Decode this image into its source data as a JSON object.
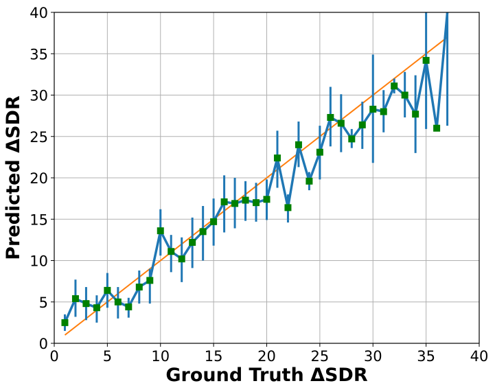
{
  "chart_data": {
    "type": "line",
    "xlabel": "Ground Truth ΔSDR",
    "ylabel": "Predicted ΔSDR",
    "xlim": [
      0,
      40
    ],
    "ylim": [
      0,
      40
    ],
    "xticks": [
      0,
      5,
      10,
      15,
      20,
      25,
      30,
      35,
      40
    ],
    "yticks": [
      0,
      5,
      10,
      15,
      20,
      25,
      30,
      35,
      40
    ],
    "grid": true,
    "series": [
      {
        "kind": "errorbar-line",
        "color": "#1f77b4",
        "marker": "square",
        "marker_color": "#008000",
        "points": [
          {
            "x": 1,
            "y": 2.5,
            "lo": 1.5,
            "hi": 3.5
          },
          {
            "x": 2,
            "y": 5.4,
            "lo": 3.2,
            "hi": 7.7
          },
          {
            "x": 3,
            "y": 4.8,
            "lo": 2.8,
            "hi": 6.8
          },
          {
            "x": 4,
            "y": 4.3,
            "lo": 2.5,
            "hi": 5.8
          },
          {
            "x": 5,
            "y": 6.4,
            "lo": 4.3,
            "hi": 8.5
          },
          {
            "x": 6,
            "y": 5.0,
            "lo": 3.0,
            "hi": 6.8
          },
          {
            "x": 7,
            "y": 4.4,
            "lo": 3.1,
            "hi": 5.5
          },
          {
            "x": 8,
            "y": 6.8,
            "lo": 4.8,
            "hi": 8.8
          },
          {
            "x": 9,
            "y": 7.6,
            "lo": 4.8,
            "hi": 9.0
          },
          {
            "x": 10,
            "y": 13.6,
            "lo": 10.6,
            "hi": 16.2
          },
          {
            "x": 11,
            "y": 11.1,
            "lo": 8.6,
            "hi": 13.1
          },
          {
            "x": 12,
            "y": 10.2,
            "lo": 7.4,
            "hi": 12.8
          },
          {
            "x": 13,
            "y": 12.2,
            "lo": 9.1,
            "hi": 15.2
          },
          {
            "x": 14,
            "y": 13.5,
            "lo": 10.0,
            "hi": 16.6
          },
          {
            "x": 15,
            "y": 14.7,
            "lo": 11.8,
            "hi": 17.5
          },
          {
            "x": 16,
            "y": 17.1,
            "lo": 13.4,
            "hi": 20.3
          },
          {
            "x": 17,
            "y": 16.9,
            "lo": 13.9,
            "hi": 20.0
          },
          {
            "x": 18,
            "y": 17.3,
            "lo": 14.8,
            "hi": 19.6
          },
          {
            "x": 19,
            "y": 17.0,
            "lo": 14.7,
            "hi": 19.4
          },
          {
            "x": 20,
            "y": 17.4,
            "lo": 14.9,
            "hi": 19.8
          },
          {
            "x": 21,
            "y": 22.4,
            "lo": 18.8,
            "hi": 25.7
          },
          {
            "x": 22,
            "y": 16.4,
            "lo": 14.6,
            "hi": 18.0
          },
          {
            "x": 23,
            "y": 24.0,
            "lo": 21.3,
            "hi": 26.8
          },
          {
            "x": 24,
            "y": 19.6,
            "lo": 18.5,
            "hi": 20.7
          },
          {
            "x": 25,
            "y": 23.1,
            "lo": 19.8,
            "hi": 26.3
          },
          {
            "x": 26,
            "y": 27.3,
            "lo": 23.8,
            "hi": 31.0
          },
          {
            "x": 27,
            "y": 26.6,
            "lo": 23.1,
            "hi": 30.1
          },
          {
            "x": 28,
            "y": 24.7,
            "lo": 23.6,
            "hi": 25.9
          },
          {
            "x": 29,
            "y": 26.4,
            "lo": 23.5,
            "hi": 29.2
          },
          {
            "x": 30,
            "y": 28.3,
            "lo": 21.8,
            "hi": 34.9
          },
          {
            "x": 31,
            "y": 28.0,
            "lo": 25.5,
            "hi": 30.6
          },
          {
            "x": 32,
            "y": 31.1,
            "lo": 30.2,
            "hi": 32.0
          },
          {
            "x": 33,
            "y": 30.0,
            "lo": 27.3,
            "hi": 32.8
          },
          {
            "x": 34,
            "y": 27.7,
            "lo": 23.0,
            "hi": 32.4
          },
          {
            "x": 35,
            "y": 34.2,
            "lo": 25.9,
            "hi": 40.0
          },
          {
            "x": 36,
            "y": 26.0,
            "lo": 26.0,
            "hi": 26.0
          },
          {
            "x": 37,
            "y": 40.0,
            "lo": 26.3,
            "hi": 40.0
          }
        ]
      },
      {
        "kind": "reference-line",
        "color": "#ff7f0e",
        "x": [
          1,
          37
        ],
        "y": [
          1,
          37
        ]
      }
    ]
  }
}
